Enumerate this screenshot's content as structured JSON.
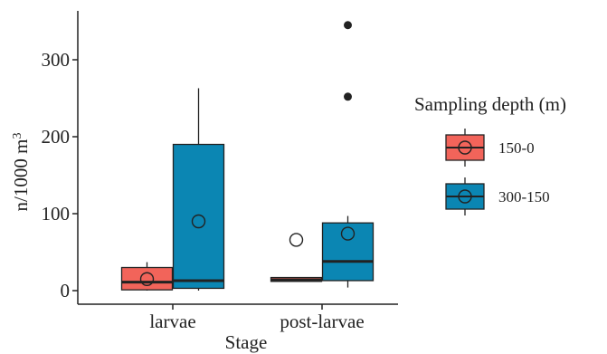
{
  "chart_data": {
    "type": "boxplot",
    "xlabel": "Stage",
    "ylabel": "n/1000 m",
    "ylabel_superscript": "3",
    "ylim": [
      -20,
      350
    ],
    "yticks": [
      0,
      100,
      200,
      300
    ],
    "categories": [
      "larvae",
      "post-larvae"
    ],
    "legend": {
      "title": "Sampling depth (m)",
      "position": "right"
    },
    "grid": false,
    "series": [
      {
        "name": "150-0",
        "color": "#f2645a",
        "boxes": [
          {
            "category": "larvae",
            "whisker_low": 0,
            "q1": 1,
            "median": 11,
            "q3": 30,
            "whisker_high": 37,
            "mean": 15,
            "outliers": []
          },
          {
            "category": "post-larvae",
            "whisker_low": 12,
            "q1": 12,
            "median": 14,
            "q3": 17,
            "whisker_high": 17,
            "mean": 66,
            "outliers": []
          }
        ]
      },
      {
        "name": "300-150",
        "color": "#0b86b3",
        "boxes": [
          {
            "category": "larvae",
            "whisker_low": 0,
            "q1": 3,
            "median": 13,
            "q3": 190,
            "whisker_high": 263,
            "mean": 90,
            "outliers": []
          },
          {
            "category": "post-larvae",
            "whisker_low": 4,
            "q1": 13,
            "median": 38,
            "q3": 88,
            "whisker_high": 97,
            "mean": 74,
            "outliers": [
              345,
              252
            ]
          }
        ]
      }
    ]
  }
}
